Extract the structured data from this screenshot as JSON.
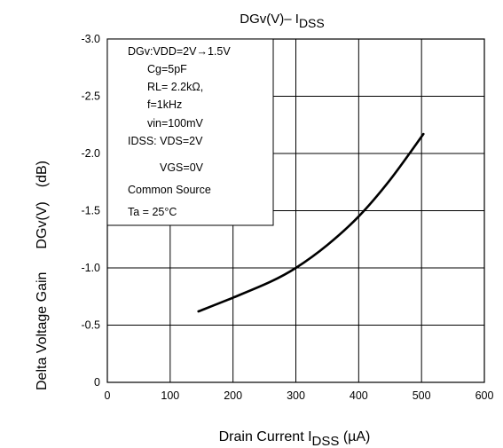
{
  "chart_data": {
    "type": "line",
    "title": {
      "main": "DGv(V)– I",
      "sub": "DSS"
    },
    "xlabel": {
      "main": "Drain Current   I",
      "sub": "DSS",
      "unit": "   (µA)"
    },
    "ylabel": {
      "part1": "Delta Voltage Gain",
      "part2": "DGv(V)",
      "part3": "(dB)"
    },
    "xlim": [
      0,
      600
    ],
    "ylim": [
      0,
      -3.0
    ],
    "x_ticks": [
      "0",
      "100",
      "200",
      "300",
      "400",
      "500",
      "600"
    ],
    "y_ticks": [
      "0",
      "-0.5",
      "-1.0",
      "-1.5",
      "-2.0",
      "-2.5",
      "-3.0"
    ],
    "x_tick_values": [
      0,
      100,
      200,
      300,
      400,
      500,
      600
    ],
    "y_tick_values": [
      0,
      -0.5,
      -1.0,
      -1.5,
      -2.0,
      -2.5,
      -3.0
    ],
    "grid": true,
    "series": [
      {
        "x": [
          145,
          200,
          260,
          300,
          350,
          400,
          450,
          503
        ],
        "y": [
          -0.62,
          -0.74,
          -0.88,
          -1.0,
          -1.2,
          -1.45,
          -1.77,
          -2.17
        ]
      }
    ],
    "annotation": [
      "DGv:VDD=2V→1.5V",
      "Cg=5pF",
      "RL= 2.2kΩ,",
      "f=1kHz",
      "vin=100mV",
      "IDSS: VDS=2V",
      "VGS=0V",
      "Common Source",
      "Ta = 25°C"
    ]
  }
}
